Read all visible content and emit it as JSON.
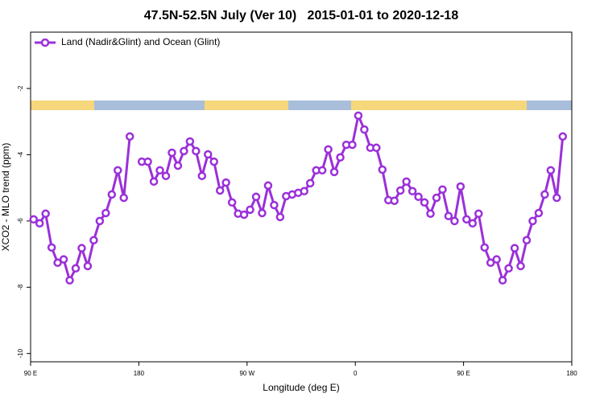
{
  "chart_data": {
    "type": "line",
    "title": "47.5N-52.5N July (Ver 10)   2015-01-01 to 2020-12-18",
    "xlabel": "Longitude (deg E)",
    "ylabel": "XCO2 - MLO trend (ppm)",
    "x": [
      92.5,
      97.5,
      102.5,
      107.5,
      112.5,
      117.5,
      122.5,
      127.5,
      132.5,
      137.5,
      142.5,
      147.5,
      152.5,
      157.5,
      162.5,
      167.5,
      172.5,
      177.5,
      182.5,
      187.5,
      192.5,
      197.5,
      202.5,
      207.5,
      212.5,
      217.5,
      222.5,
      227.5,
      232.5,
      237.5,
      242.5,
      247.5,
      252.5,
      257.5,
      262.5,
      267.5,
      272.5,
      277.5,
      282.5,
      287.5,
      292.5,
      297.5,
      302.5,
      307.5,
      312.5,
      317.5,
      322.5,
      327.5,
      332.5,
      337.5,
      342.5,
      347.5,
      352.5,
      357.5,
      362.5,
      367.5,
      372.5,
      377.5,
      382.5,
      387.5,
      392.5,
      397.5,
      402.5,
      407.5,
      412.5,
      417.5,
      422.5,
      427.5,
      432.5,
      437.5,
      442.5,
      447.5,
      452.5,
      457.5,
      462.5,
      467.5,
      472.5,
      477.5,
      482.5,
      487.5,
      492.5,
      497.5,
      502.5,
      507.5,
      512.5,
      517.5,
      522.5,
      527.5,
      532.5
    ],
    "series": [
      {
        "name": "Land (Nadir&Glint) and Ocean (Glint)",
        "color": "#9b30d9",
        "values": [
          -5.95,
          -6.07,
          -5.78,
          -6.8,
          -7.26,
          -7.16,
          -7.79,
          -7.43,
          -6.82,
          -7.36,
          -6.58,
          -6.0,
          -5.76,
          -5.2,
          -4.47,
          -5.3,
          -3.45,
          null,
          -4.21,
          -4.21,
          -4.81,
          -4.47,
          -4.64,
          -3.94,
          -4.33,
          -3.89,
          -3.6,
          -3.89,
          -4.64,
          -3.99,
          -4.21,
          -5.08,
          -4.84,
          -5.44,
          -5.78,
          -5.81,
          -5.66,
          -5.27,
          -5.76,
          -4.93,
          -5.52,
          -5.88,
          -5.25,
          -5.2,
          -5.15,
          -5.1,
          -4.86,
          -4.47,
          -4.47,
          -3.84,
          -4.52,
          -4.08,
          -3.7,
          -3.7,
          -2.82,
          -3.24,
          -3.79,
          -3.79,
          -4.45,
          -5.37,
          -5.39,
          -5.08,
          -4.81,
          -5.1,
          -5.27,
          -5.44,
          -5.78,
          -5.3,
          -5.05,
          -5.85,
          -6.0,
          -4.96,
          -5.95,
          -6.07,
          -5.78,
          -6.8,
          -7.26,
          -7.16,
          -7.79,
          -7.43,
          -6.82,
          -7.36,
          -6.58,
          -6.0,
          -5.76,
          -5.2,
          -4.47,
          -5.3,
          -3.45
        ]
      }
    ],
    "xlim": [
      90,
      540
    ],
    "ylim": [
      -10.25,
      -0.3
    ],
    "xticks": [
      {
        "value": 90,
        "label": "90 E"
      },
      {
        "value": 180,
        "label": "180"
      },
      {
        "value": 270,
        "label": "90 W"
      },
      {
        "value": 360,
        "label": "0"
      },
      {
        "value": 450,
        "label": "90 E"
      },
      {
        "value": 540,
        "label": "180"
      }
    ],
    "yticks": [
      -2,
      -4,
      -6,
      -8,
      -10
    ],
    "grid": false,
    "legend": "top-left"
  }
}
